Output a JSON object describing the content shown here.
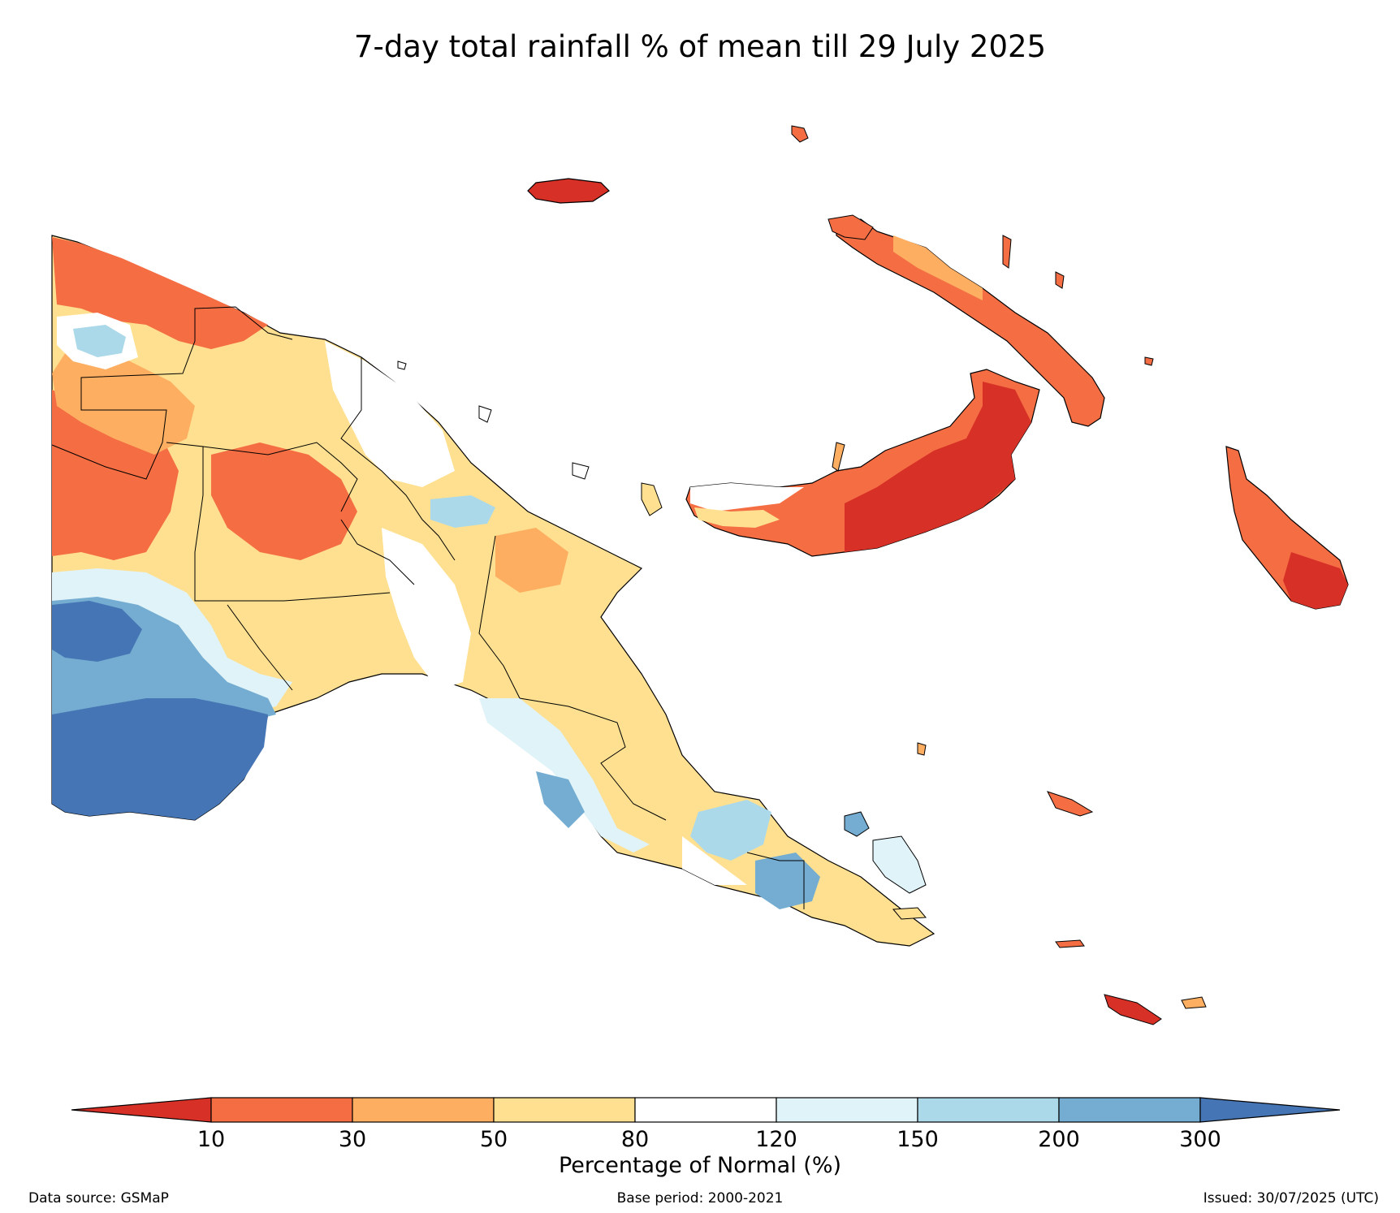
{
  "title": "7-day total rainfall % of mean till 29 July 2025",
  "colorbar": {
    "title": "Percentage of Normal (%)",
    "ticks": [
      "10",
      "30",
      "50",
      "80",
      "120",
      "150",
      "200",
      "300"
    ],
    "colors": [
      "#d73027",
      "#f46d43",
      "#fdae61",
      "#fee090",
      "#ffffff",
      "#e0f3f8",
      "#abd9e9",
      "#74add1",
      "#4575b4"
    ]
  },
  "footer": {
    "left": "Data source: GSMaP",
    "center": "Base period: 2000-2021",
    "right": "Issued: 30/07/2025 (UTC)"
  }
}
